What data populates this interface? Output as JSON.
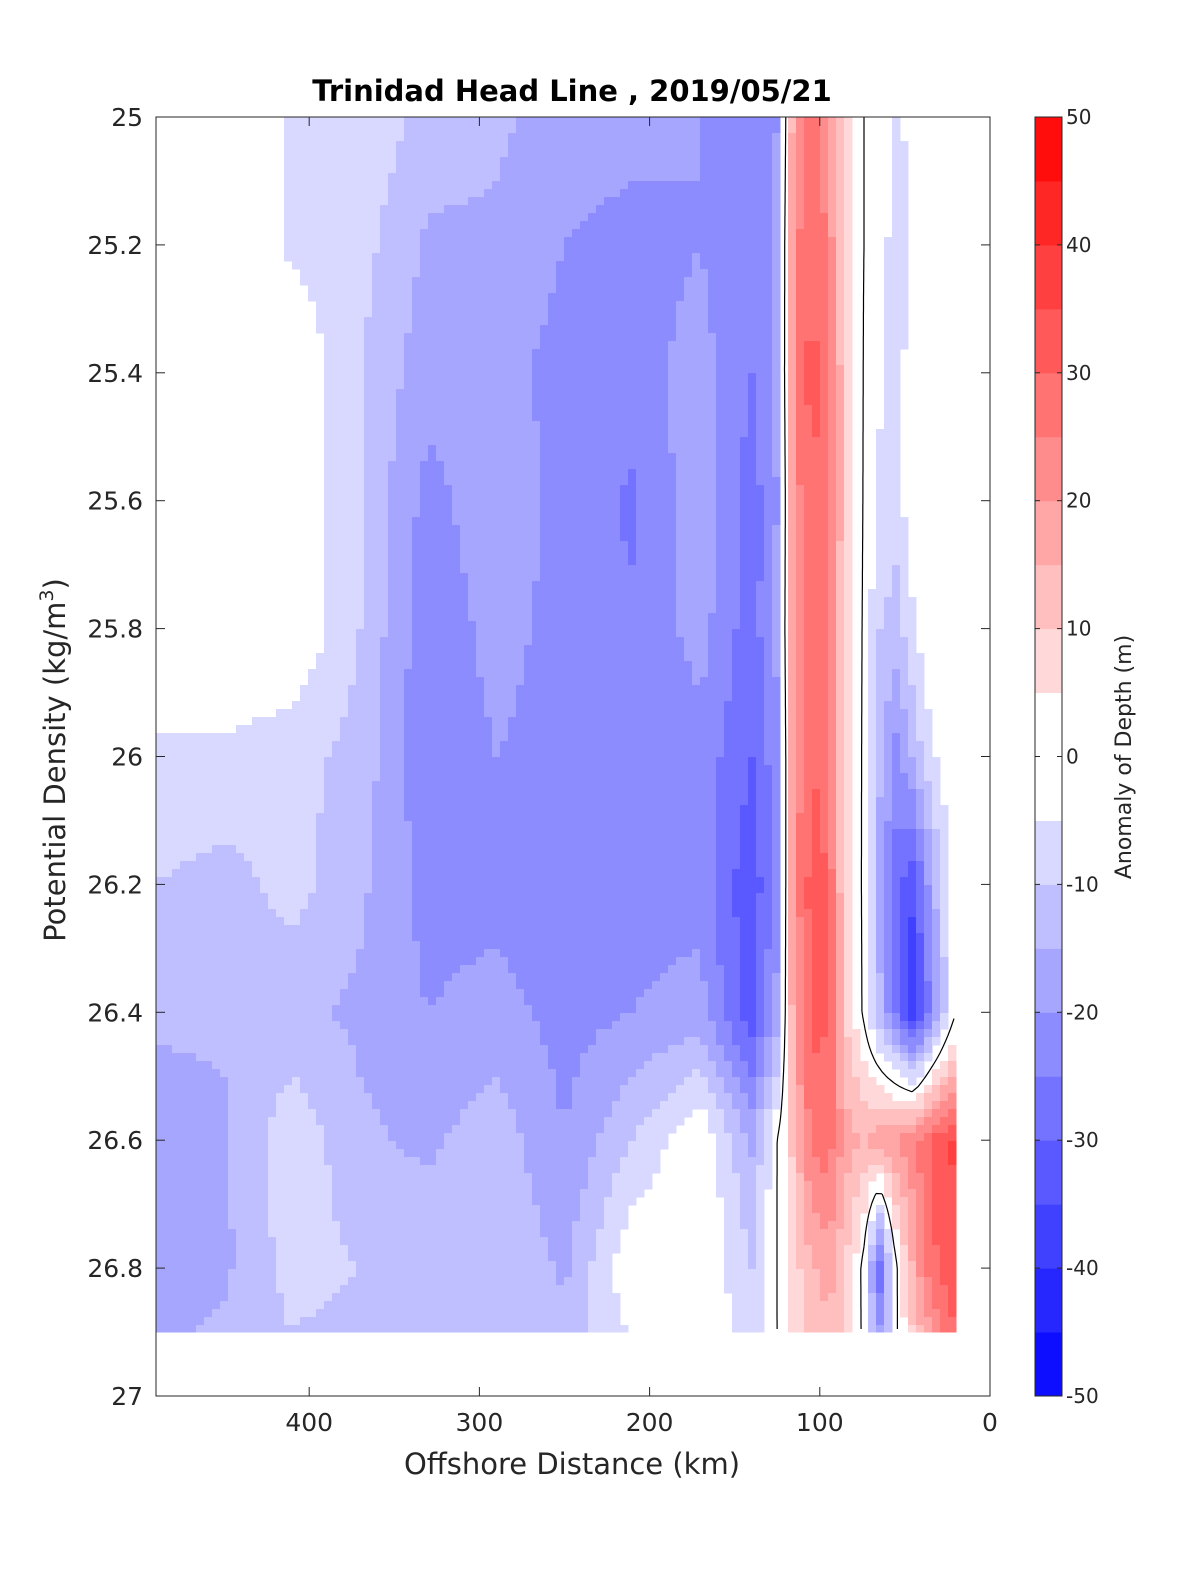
{
  "chart_data": {
    "type": "heatmap",
    "subtype": "filled-contour",
    "title": "Trinidad Head Line , 2019/05/21",
    "xlabel": "Offshore Distance (km)",
    "ylabel_main": "Potential Density (kg/m",
    "ylabel_sup": "3",
    "ylabel_close": ")",
    "xlim": [
      490,
      0
    ],
    "x_reversed": true,
    "ylim": [
      25,
      27
    ],
    "y_reversed": true,
    "x_ticks": [
      "400",
      "300",
      "200",
      "100",
      "0"
    ],
    "x_tick_values": [
      400,
      300,
      200,
      100,
      0
    ],
    "y_ticks": [
      "25",
      "25.2",
      "25.4",
      "25.6",
      "25.8",
      "26",
      "26.2",
      "26.4",
      "26.6",
      "26.8",
      "27"
    ],
    "y_tick_values": [
      25,
      25.2,
      25.4,
      25.6,
      25.8,
      26,
      26.2,
      26.4,
      26.6,
      26.8,
      27
    ],
    "data_extent": {
      "x": [
        490,
        20
      ],
      "y": [
        25,
        26.9
      ]
    },
    "colorbar": {
      "label": "Anomaly of Depth (m)",
      "range": [
        -50,
        50
      ],
      "levels": [
        -50,
        -45,
        -40,
        -35,
        -30,
        -25,
        -20,
        -15,
        -10,
        -5,
        5,
        10,
        15,
        20,
        25,
        30,
        35,
        40,
        45,
        50
      ],
      "ticks": [
        "50",
        "40",
        "30",
        "20",
        "10",
        "0",
        "-10",
        "-20",
        "-30",
        "-40",
        "-50"
      ],
      "tick_values": [
        50,
        40,
        30,
        20,
        10,
        0,
        -10,
        -20,
        -30,
        -40,
        -50
      ],
      "low_color": "#0000ff",
      "high_color": "#ff0000",
      "mid_color": "#ffffff"
    },
    "x_grid": [
      490,
      450,
      410,
      370,
      330,
      290,
      250,
      210,
      170,
      140,
      125,
      115,
      105,
      95,
      85,
      75,
      65,
      55,
      45,
      35,
      20
    ],
    "y_grid": [
      25.0,
      25.2,
      25.4,
      25.6,
      25.8,
      26.0,
      26.2,
      26.4,
      26.6,
      26.8,
      26.9
    ],
    "values": [
      [
        0,
        0,
        -6,
        -6,
        -12,
        -14,
        -17,
        -18,
        -20,
        -25,
        -20,
        20,
        27,
        22,
        7,
        0,
        0,
        -8,
        0,
        0,
        0
      ],
      [
        0,
        0,
        -6,
        -8,
        -16,
        -16,
        -20,
        -22,
        -20,
        -25,
        -18,
        23,
        30,
        24,
        6,
        0,
        0,
        -10,
        -4,
        0,
        0
      ],
      [
        0,
        0,
        0,
        -10,
        -18,
        -18,
        -22,
        -22,
        -18,
        -25,
        -18,
        24,
        32,
        27,
        10,
        0,
        -4,
        -8,
        0,
        0,
        0
      ],
      [
        0,
        0,
        0,
        -10,
        -22,
        -16,
        -22,
        -26,
        -16,
        -28,
        -20,
        22,
        30,
        28,
        10,
        0,
        -6,
        -8,
        0,
        0,
        0
      ],
      [
        0,
        0,
        0,
        -10,
        -24,
        -18,
        -22,
        -24,
        -18,
        -28,
        -18,
        22,
        30,
        26,
        8,
        0,
        -10,
        -12,
        -6,
        0,
        0
      ],
      [
        -6,
        -6,
        -8,
        -12,
        -24,
        -20,
        -22,
        -24,
        -22,
        -30,
        -22,
        22,
        30,
        28,
        8,
        0,
        -14,
        -22,
        -14,
        -6,
        0
      ],
      [
        -10,
        -12,
        -8,
        -14,
        -22,
        -22,
        -24,
        -22,
        -22,
        -34,
        -22,
        22,
        32,
        30,
        8,
        0,
        -16,
        -28,
        -34,
        -18,
        0
      ],
      [
        -14,
        -14,
        -14,
        -16,
        -20,
        -18,
        -22,
        -20,
        -18,
        -34,
        -18,
        20,
        32,
        30,
        10,
        0,
        -14,
        -26,
        -40,
        -24,
        0
      ],
      [
        -18,
        -16,
        -6,
        -14,
        -16,
        -12,
        -20,
        -10,
        0,
        -16,
        0,
        12,
        26,
        28,
        18,
        14,
        18,
        20,
        24,
        30,
        36
      ],
      [
        -18,
        -16,
        -8,
        -10,
        -12,
        -10,
        -16,
        0,
        0,
        -10,
        0,
        8,
        14,
        18,
        10,
        0,
        -30,
        0,
        16,
        28,
        36
      ],
      [
        -16,
        -14,
        -10,
        -12,
        -12,
        -10,
        -14,
        -4,
        0,
        -8,
        0,
        6,
        12,
        14,
        8,
        0,
        -20,
        0,
        10,
        20,
        30
      ]
    ]
  }
}
